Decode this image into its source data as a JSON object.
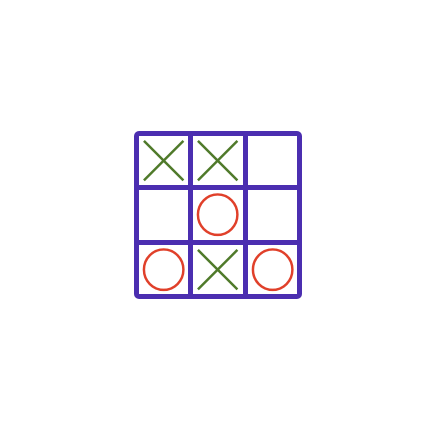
{
  "game": {
    "cells": [
      "X",
      "X",
      "",
      "",
      "O",
      "",
      "O",
      "X",
      "O"
    ]
  },
  "colors": {
    "grid": "#4b2eb0",
    "x_mark": "#4f7a2a",
    "o_mark": "#e0402a",
    "background": "#ffffff"
  }
}
